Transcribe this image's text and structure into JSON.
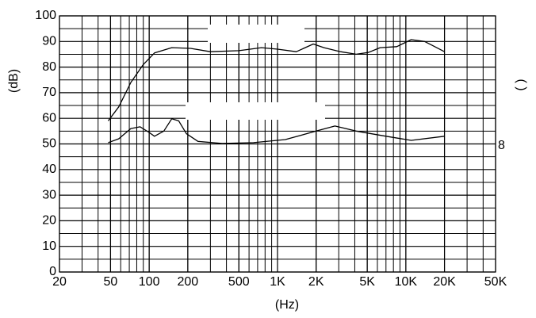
{
  "chart_data": {
    "type": "line",
    "log_x": true,
    "grid": true,
    "ylabel": "(dB)",
    "xlabel": "(Hz)",
    "annotations": [
      "( )",
      "8"
    ],
    "xlim": [
      20,
      50000
    ],
    "xticks": [
      20,
      50,
      100,
      200,
      500,
      {
        "value": 1000,
        "label": "1K"
      },
      {
        "value": 2000,
        "label": "2K"
      },
      {
        "value": 5000,
        "label": "5K"
      },
      {
        "value": 10000,
        "label": "10K"
      },
      {
        "value": 20000,
        "label": "20K"
      },
      {
        "value": 50000,
        "label": "50K"
      }
    ],
    "ylim": [
      0,
      100
    ],
    "yticks": [
      0,
      10,
      20,
      30,
      40,
      50,
      60,
      70,
      80,
      90,
      100
    ],
    "series": [
      {
        "color": "#000000",
        "x": [
          48,
          58,
          72,
          90,
          110,
          150,
          210,
          300,
          500,
          750,
          1000,
          1400,
          1900,
          2300,
          3100,
          4100,
          5100,
          6300,
          8500,
          11000,
          14000,
          16000,
          20000
        ],
        "values": [
          59,
          64.5,
          74,
          81,
          85.5,
          87.6,
          87.3,
          86,
          86.4,
          87.6,
          87,
          86,
          89,
          87.6,
          86,
          85,
          85.7,
          87.6,
          88,
          90.7,
          90,
          88.5,
          86
        ]
      },
      {
        "color": "#000000",
        "x": [
          48,
          58,
          72,
          85,
          100,
          110,
          130,
          150,
          170,
          195,
          240,
          370,
          650,
          1150,
          2000,
          2800,
          4100,
          7000,
          11000,
          20000
        ],
        "values": [
          50.5,
          52,
          56,
          56.7,
          54.5,
          53,
          55,
          59.8,
          59,
          54,
          51,
          50.2,
          50.5,
          51.7,
          55,
          57,
          55,
          53,
          51.4,
          53
        ]
      }
    ]
  }
}
